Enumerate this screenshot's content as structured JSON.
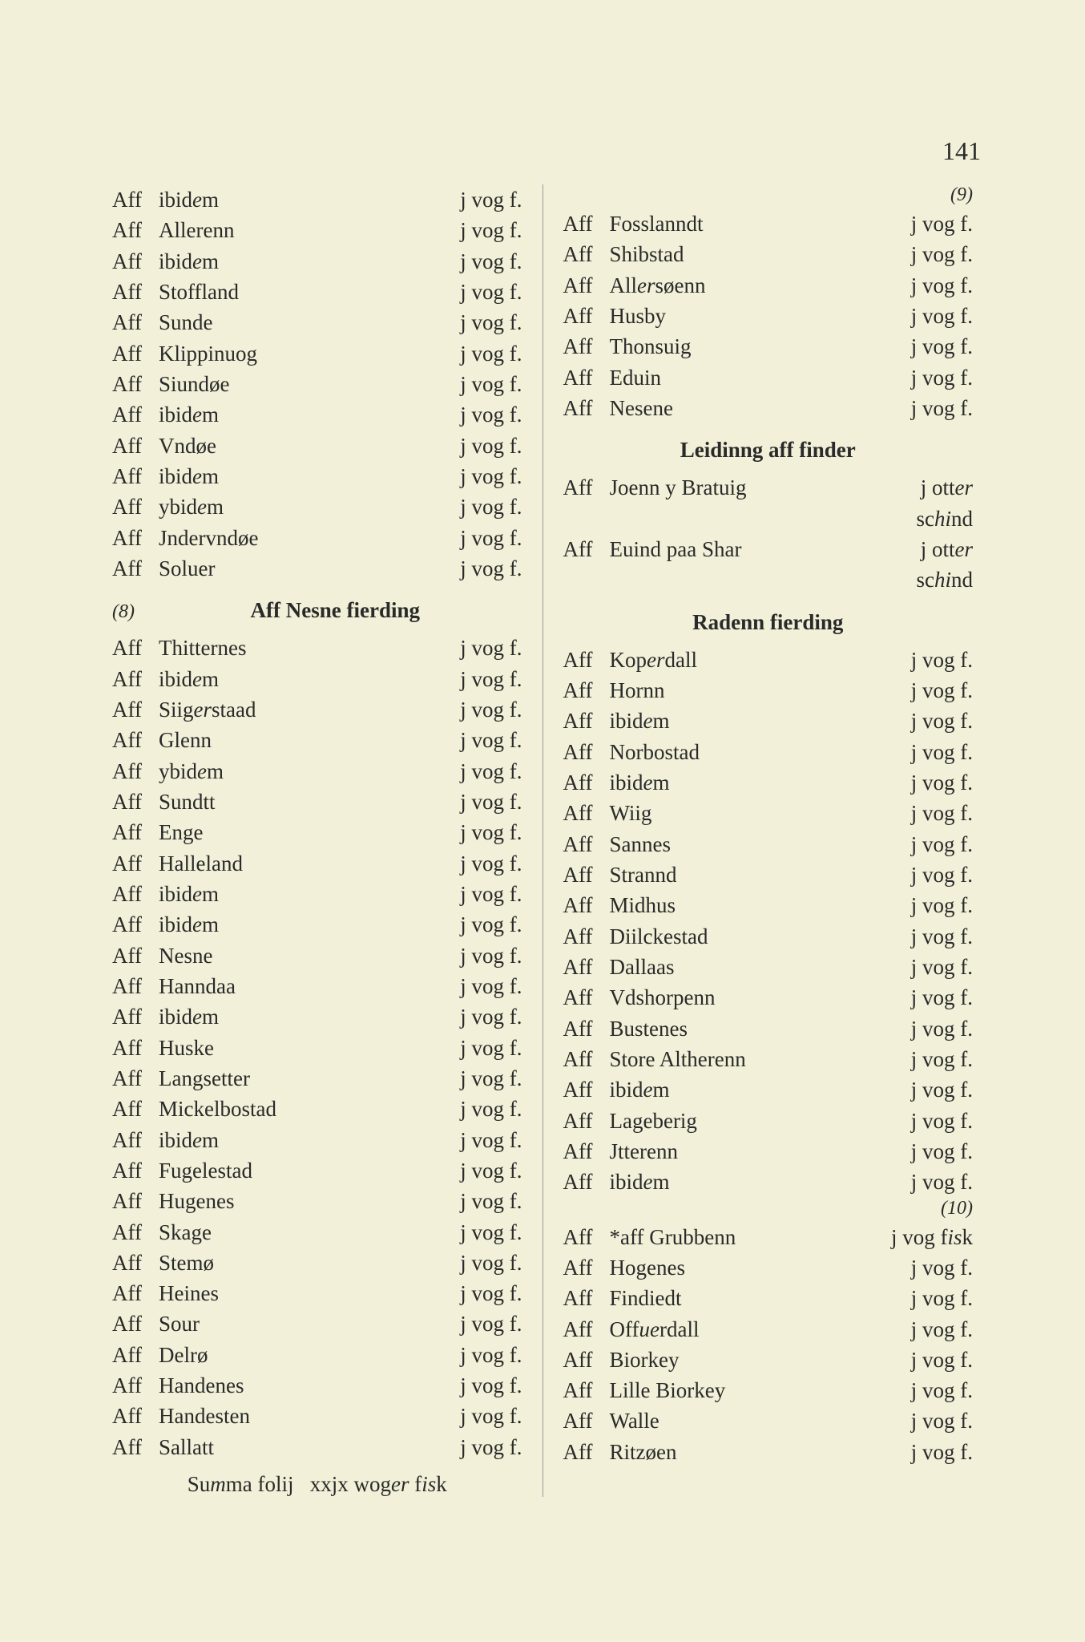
{
  "pageNumber": "141",
  "marginals": {
    "m8": "(8)",
    "m9": "(9)",
    "m10": "(10)"
  },
  "sections": {
    "nesne": "Aff Nesne fierding",
    "leidinng": "Leidinng aff finder",
    "radenn": "Radenn fierding"
  },
  "summa": "Summa folij   xxjx woger fisk",
  "leftTop": [
    {
      "prefix": "Aff",
      "name": "ibidem",
      "amount": "j vog f."
    },
    {
      "prefix": "Aff",
      "name": "Allerenn",
      "amount": "j vog f."
    },
    {
      "prefix": "Aff",
      "name": "ibidem",
      "amount": "j vog f."
    },
    {
      "prefix": "Aff",
      "name": "Stoffland",
      "amount": "j vog f."
    },
    {
      "prefix": "Aff",
      "name": "Sunde",
      "amount": "j vog f."
    },
    {
      "prefix": "Aff",
      "name": "Klippinuog",
      "amount": "j vog f."
    },
    {
      "prefix": "Aff",
      "name": "Siundøe",
      "amount": "j vog f."
    },
    {
      "prefix": "Aff",
      "name": "ibidem",
      "amount": "j vog f."
    },
    {
      "prefix": "Aff",
      "name": "Vndøe",
      "amount": "j vog f."
    },
    {
      "prefix": "Aff",
      "name": "ibidem",
      "amount": "j vog f."
    },
    {
      "prefix": "Aff",
      "name": "ybidem",
      "amount": "j vog f."
    },
    {
      "prefix": "Aff",
      "name": "Jndervndøe",
      "amount": "j vog f."
    },
    {
      "prefix": "Aff",
      "name": "Soluer",
      "amount": "j vog f."
    }
  ],
  "leftNesne": [
    {
      "prefix": "Aff",
      "name": "Thitternes",
      "amount": "j vog f."
    },
    {
      "prefix": "Aff",
      "name": "ibidem",
      "amount": "j vog f."
    },
    {
      "prefix": "Aff",
      "name": "Siigerstaad",
      "amount": "j vog f."
    },
    {
      "prefix": "Aff",
      "name": "Glenn",
      "amount": "j vog f."
    },
    {
      "prefix": "Aff",
      "name": "ybidem",
      "amount": "j vog f."
    },
    {
      "prefix": "Aff",
      "name": "Sundtt",
      "amount": "j vog f."
    },
    {
      "prefix": "Aff",
      "name": "Enge",
      "amount": "j vog f."
    },
    {
      "prefix": "Aff",
      "name": "Halleland",
      "amount": "j vog f."
    },
    {
      "prefix": "Aff",
      "name": "ibidem",
      "amount": "j vog f."
    },
    {
      "prefix": "Aff",
      "name": "ibidem",
      "amount": "j vog f."
    },
    {
      "prefix": "Aff",
      "name": "Nesne",
      "amount": "j vog f."
    },
    {
      "prefix": "Aff",
      "name": "Hanndaa",
      "amount": "j vog f."
    },
    {
      "prefix": "Aff",
      "name": "ibidem",
      "amount": "j vog f."
    },
    {
      "prefix": "Aff",
      "name": "Huske",
      "amount": "j vog f."
    },
    {
      "prefix": "Aff",
      "name": "Langsetter",
      "amount": "j vog f."
    },
    {
      "prefix": "Aff",
      "name": "Mickelbostad",
      "amount": "j vog f."
    },
    {
      "prefix": "Aff",
      "name": "ibidem",
      "amount": "j vog f."
    },
    {
      "prefix": "Aff",
      "name": "Fugelestad",
      "amount": "j vog f."
    },
    {
      "prefix": "Aff",
      "name": "Hugenes",
      "amount": "j vog f."
    },
    {
      "prefix": "Aff",
      "name": "Skage",
      "amount": "j vog f."
    },
    {
      "prefix": "Aff",
      "name": "Stemø",
      "amount": "j vog f."
    },
    {
      "prefix": "Aff",
      "name": "Heines",
      "amount": "j vog f."
    },
    {
      "prefix": "Aff",
      "name": "Sour",
      "amount": "j vog f."
    },
    {
      "prefix": "Aff",
      "name": "Delrø",
      "amount": "j vog f."
    },
    {
      "prefix": "Aff",
      "name": "Handenes",
      "amount": "j vog f."
    },
    {
      "prefix": "Aff",
      "name": "Handesten",
      "amount": "j vog f."
    },
    {
      "prefix": "Aff",
      "name": "Sallatt",
      "amount": "j vog f."
    }
  ],
  "rightTop": [
    {
      "prefix": "Aff",
      "name": "Fosslanndt",
      "amount": "j vog f."
    },
    {
      "prefix": "Aff",
      "name": "Shibstad",
      "amount": "j vog f."
    },
    {
      "prefix": "Aff",
      "name": "Allersøenn",
      "amount": "j vog f."
    },
    {
      "prefix": "Aff",
      "name": "Husby",
      "amount": "j vog f."
    },
    {
      "prefix": "Aff",
      "name": "Thonsuig",
      "amount": "j vog f."
    },
    {
      "prefix": "Aff",
      "name": "Eduin",
      "amount": "j vog f."
    },
    {
      "prefix": "Aff",
      "name": "Nesene",
      "amount": "j vog f."
    }
  ],
  "leidinng": [
    {
      "prefix": "Aff",
      "name": "Joenn y Bratuig",
      "amount": "j otter",
      "cont": "schind"
    },
    {
      "prefix": "Aff",
      "name": "Euind paa Shar",
      "amount": "j otter",
      "cont": "schind"
    }
  ],
  "radenn": [
    {
      "prefix": "Aff",
      "name": "Koperdall",
      "amount": "j vog f."
    },
    {
      "prefix": "Aff",
      "name": "Hornn",
      "amount": "j vog f."
    },
    {
      "prefix": "Aff",
      "name": "ibidem",
      "amount": "j vog f."
    },
    {
      "prefix": "Aff",
      "name": "Norbostad",
      "amount": "j vog f."
    },
    {
      "prefix": "Aff",
      "name": "ibidem",
      "amount": "j vog f."
    },
    {
      "prefix": "Aff",
      "name": "Wiig",
      "amount": "j vog f."
    },
    {
      "prefix": "Aff",
      "name": "Sannes",
      "amount": "j vog f."
    },
    {
      "prefix": "Aff",
      "name": "Strannd",
      "amount": "j vog f."
    },
    {
      "prefix": "Aff",
      "name": "Midhus",
      "amount": "j vog f."
    },
    {
      "prefix": "Aff",
      "name": "Diilckestad",
      "amount": "j vog f."
    },
    {
      "prefix": "Aff",
      "name": "Dallaas",
      "amount": "j vog f."
    },
    {
      "prefix": "Aff",
      "name": "Vdshorpenn",
      "amount": "j vog f."
    },
    {
      "prefix": "Aff",
      "name": "Bustenes",
      "amount": "j vog f."
    },
    {
      "prefix": "Aff",
      "name": "Store Altherenn",
      "amount": "j vog f."
    },
    {
      "prefix": "Aff",
      "name": "ibidem",
      "amount": "j vog f."
    },
    {
      "prefix": "Aff",
      "name": "Lageberig",
      "amount": "j vog f."
    },
    {
      "prefix": "Aff",
      "name": "Jtterenn",
      "amount": "j vog f."
    },
    {
      "prefix": "Aff",
      "name": "ibidem",
      "amount": "j vog f."
    }
  ],
  "radenn2": [
    {
      "prefix": "Aff",
      "name": "*aff Grubbenn",
      "amount": "j vog fisk"
    },
    {
      "prefix": "Aff",
      "name": "Hogenes",
      "amount": "j vog f."
    },
    {
      "prefix": "Aff",
      "name": "Findiedt",
      "amount": "j vog f."
    },
    {
      "prefix": "Aff",
      "name": "Offuerdall",
      "amount": "j vog f."
    },
    {
      "prefix": "Aff",
      "name": "Biorkey",
      "amount": "j vog f."
    },
    {
      "prefix": "Aff",
      "name": "Lille Biorkey",
      "amount": "j vog f."
    },
    {
      "prefix": "Aff",
      "name": "Walle",
      "amount": "j vog f."
    },
    {
      "prefix": "Aff",
      "name": "Ritzøen",
      "amount": "j vog f."
    }
  ]
}
